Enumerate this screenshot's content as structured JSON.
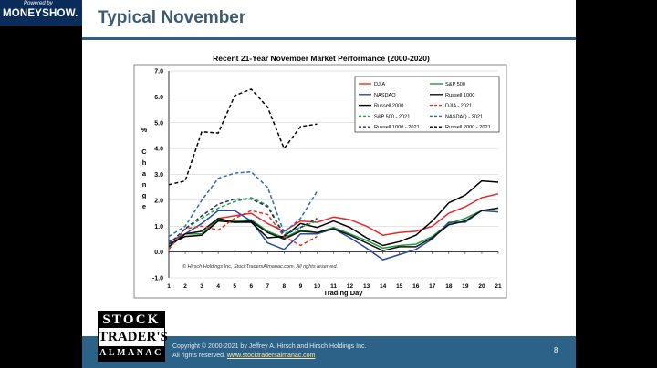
{
  "branding": {
    "powered_by": "Powered by",
    "brand": "MONEYSHOW."
  },
  "slide": {
    "title": "Typical November",
    "page_number": "8",
    "footer": {
      "copyright": "Copyright © 2000-2021 by Jeffrey A. Hirsch and Hirsch Holdings Inc.",
      "rights": "All rights reserved.",
      "website": "www.stocktradersalmanac.com"
    },
    "logo": {
      "line1": "STOCK",
      "line2": "TRADER'S",
      "line3": "ALMANAC"
    }
  },
  "colors": {
    "dark_blue": "#0a2c5a",
    "accent": "#2d6288",
    "title": "#3d5a73"
  },
  "chart_data": {
    "type": "line",
    "title": "Recent 21-Year November Market Performance (2000-2020)",
    "xlabel": "Trading Day",
    "ylabel": "% Change",
    "ylabel_lines": [
      "%",
      "",
      "C",
      "h",
      "a",
      "n",
      "g",
      "e"
    ],
    "xlim": [
      1,
      21
    ],
    "ylim": [
      -1.0,
      7.0
    ],
    "x_ticks": [
      1,
      2,
      3,
      4,
      5,
      6,
      7,
      8,
      9,
      10,
      11,
      12,
      13,
      14,
      15,
      16,
      17,
      18,
      19,
      20,
      21
    ],
    "y_ticks": [
      "-1.0",
      "0.0",
      "1.0",
      "2.0",
      "3.0",
      "4.0",
      "5.0",
      "6.0",
      "7.0"
    ],
    "watermark": "© Hirsch Holdings Inc, StockTradersAlmanac.com. All rights reserved.",
    "legend_position": "top-right",
    "series": [
      {
        "name": "DJIA",
        "color": "#e32a2a",
        "dash": false,
        "x": [
          1,
          2,
          3,
          4,
          5,
          6,
          7,
          8,
          9,
          10,
          11,
          12,
          13,
          14,
          15,
          16,
          17,
          18,
          19,
          20,
          21
        ],
        "values": [
          0.2,
          0.7,
          0.8,
          1.3,
          1.4,
          1.5,
          1.1,
          0.8,
          1.2,
          1.15,
          1.35,
          1.25,
          1.0,
          0.65,
          0.75,
          0.8,
          1.0,
          1.5,
          1.75,
          2.1,
          2.25
        ]
      },
      {
        "name": "S&P 500",
        "color": "#1e9a3c",
        "dash": false,
        "x": [
          1,
          2,
          3,
          4,
          5,
          6,
          7,
          8,
          9,
          10,
          11,
          12,
          13,
          14,
          15,
          16,
          17,
          18,
          19,
          20,
          21
        ],
        "values": [
          0.2,
          0.7,
          0.7,
          1.25,
          1.2,
          1.25,
          0.8,
          0.55,
          0.85,
          0.75,
          0.95,
          0.7,
          0.45,
          0.15,
          0.25,
          0.3,
          0.6,
          1.1,
          1.3,
          1.6,
          1.7
        ]
      },
      {
        "name": "NASDAQ",
        "color": "#2a4a9a",
        "dash": false,
        "x": [
          1,
          2,
          3,
          4,
          5,
          6,
          7,
          8,
          9,
          10,
          11,
          12,
          13,
          14,
          15,
          16,
          17,
          18,
          19,
          20,
          21
        ],
        "values": [
          0.4,
          0.7,
          1.1,
          1.6,
          1.6,
          1.2,
          0.35,
          0.1,
          0.7,
          0.7,
          0.9,
          0.55,
          0.15,
          -0.3,
          -0.1,
          0.1,
          0.5,
          1.15,
          1.15,
          1.6,
          1.55
        ]
      },
      {
        "name": "Russell 1000",
        "color": "#111111",
        "dash": false,
        "x": [
          1,
          2,
          3,
          4,
          5,
          6,
          7,
          8,
          9,
          10,
          11,
          12,
          13,
          14,
          15,
          16,
          17,
          18,
          19,
          20,
          21
        ],
        "values": [
          0.2,
          0.7,
          0.8,
          1.3,
          1.15,
          1.2,
          0.75,
          0.5,
          0.8,
          0.75,
          0.9,
          0.65,
          0.35,
          0.05,
          0.2,
          0.2,
          0.55,
          1.05,
          1.2,
          1.6,
          1.7
        ]
      },
      {
        "name": "Russell 2000",
        "color": "#000000",
        "dash": false,
        "x": [
          1,
          2,
          3,
          4,
          5,
          6,
          7,
          8,
          9,
          10,
          11,
          12,
          13,
          14,
          15,
          16,
          17,
          18,
          19,
          20,
          21
        ],
        "values": [
          0.3,
          0.6,
          0.65,
          1.2,
          1.15,
          1.15,
          0.55,
          0.6,
          1.1,
          0.95,
          1.2,
          0.95,
          0.55,
          0.25,
          0.4,
          0.65,
          1.2,
          1.9,
          2.2,
          2.75,
          2.7
        ]
      },
      {
        "name": "DJIA - 2021",
        "color": "#d9342b",
        "dash": true,
        "x": [
          1,
          2,
          3,
          4,
          5,
          6,
          7,
          8,
          9,
          10
        ],
        "values": [
          0.1,
          0.9,
          1.0,
          0.85,
          1.3,
          1.6,
          1.45,
          0.6,
          0.25,
          0.6
        ]
      },
      {
        "name": "S&P 500 - 2021",
        "color": "#21a33c",
        "dash": true,
        "x": [
          1,
          2,
          3,
          4,
          5,
          6,
          7,
          8,
          9,
          10
        ],
        "values": [
          0.3,
          0.9,
          1.3,
          1.7,
          1.95,
          2.1,
          1.8,
          0.7,
          0.95,
          1.2
        ]
      },
      {
        "name": "NASDAQ - 2021",
        "color": "#2a6cb8",
        "dash": true,
        "x": [
          1,
          2,
          3,
          4,
          5,
          6,
          7,
          8,
          9,
          10
        ],
        "values": [
          0.6,
          1.0,
          2.0,
          2.85,
          3.05,
          3.1,
          2.5,
          0.75,
          1.3,
          2.35
        ]
      },
      {
        "name": "Russell 1000 - 2021",
        "color": "#2a2f6a",
        "dash": true,
        "x": [
          1,
          2,
          3,
          4,
          5,
          6,
          7,
          8,
          9,
          10
        ],
        "values": [
          0.3,
          0.9,
          1.4,
          1.85,
          2.05,
          2.05,
          1.75,
          0.65,
          0.95,
          1.3
        ]
      },
      {
        "name": "Russell 2000 - 2021",
        "color": "#000000",
        "dash": true,
        "x": [
          1,
          2,
          3,
          4,
          5,
          6,
          7,
          8,
          9,
          10
        ],
        "values": [
          2.6,
          2.75,
          4.65,
          4.6,
          6.05,
          6.3,
          5.6,
          4.0,
          4.85,
          4.95
        ]
      }
    ]
  }
}
